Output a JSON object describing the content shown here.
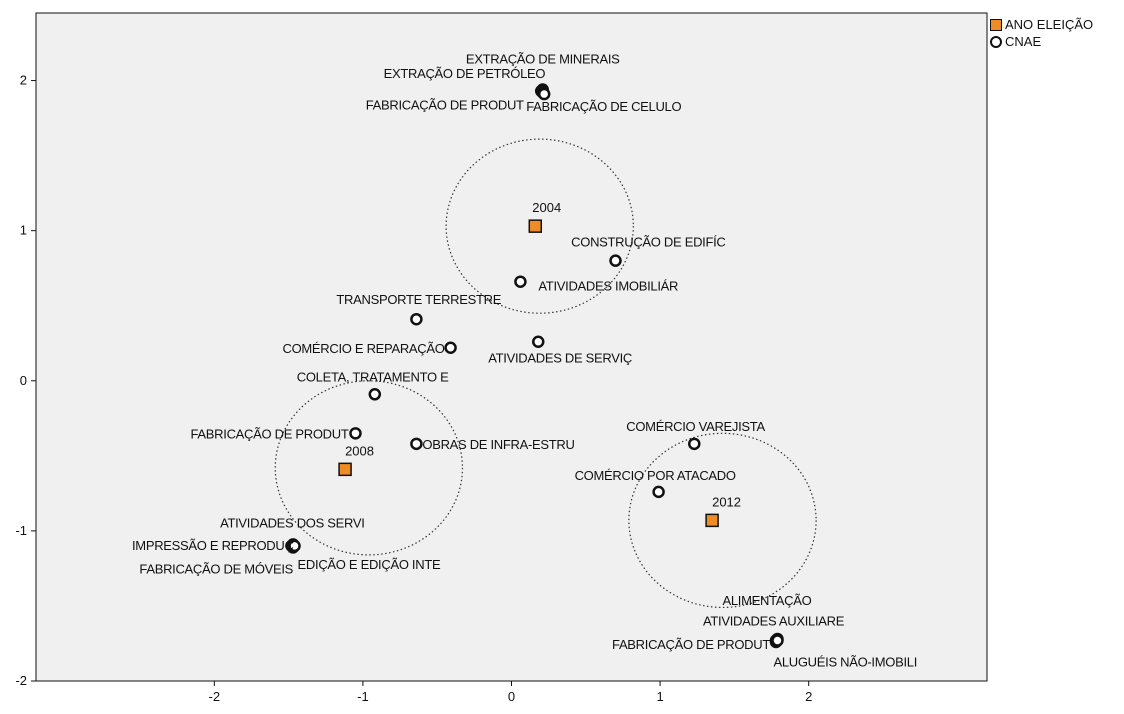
{
  "chart_data": {
    "type": "scatter",
    "title": "",
    "xlabel": "",
    "ylabel": "",
    "xlim": [
      -3.2,
      3.2
    ],
    "ylim": [
      -2,
      2.45
    ],
    "x_ticks": [
      "-2",
      "-1",
      "0",
      "1",
      "2"
    ],
    "y_ticks": [
      "2",
      "1",
      "0",
      "-1",
      "-2"
    ],
    "grid": false,
    "legend_position": "outside-top-right",
    "series": [
      {
        "name": "ANO ELEIÇÃO",
        "marker": "square",
        "color": "#f08c28",
        "points": [
          {
            "label": "2004",
            "x": 0.16,
            "y": 1.03
          },
          {
            "label": "2008",
            "x": -1.12,
            "y": -0.59
          },
          {
            "label": "2012",
            "x": 1.35,
            "y": -0.93
          }
        ]
      },
      {
        "name": "CNAE",
        "marker": "circle",
        "color": "#ffffff",
        "points": [
          {
            "label": "EXTRAÇÃO DE MINERAIS",
            "x": 0.21,
            "y": 1.94
          },
          {
            "label": "EXTRAÇÃO DE PETRÓLEO",
            "x": 0.2,
            "y": 1.93
          },
          {
            "label": "FABRICAÇÃO DE PRODUT",
            "x": 0.21,
            "y": 1.92
          },
          {
            "label": "FABRICAÇÃO DE CELULO",
            "x": 0.22,
            "y": 1.91
          },
          {
            "label": "CONSTRUÇÃO DE EDIFÍC",
            "x": 0.7,
            "y": 0.8
          },
          {
            "label": "ATIVIDADES IMOBILIÁR",
            "x": 0.06,
            "y": 0.66
          },
          {
            "label": "TRANSPORTE TERRESTRE",
            "x": -0.64,
            "y": 0.41
          },
          {
            "label": "COMÉRCIO E REPARAÇÃO",
            "x": -0.41,
            "y": 0.22
          },
          {
            "label": "ATIVIDADES DE SERVIÇ",
            "x": 0.18,
            "y": 0.26
          },
          {
            "label": "COLETA, TRATAMENTO E",
            "x": -0.92,
            "y": -0.09
          },
          {
            "label": "FABRICAÇÃO DE PRODUT",
            "x": -1.05,
            "y": -0.35
          },
          {
            "label": "OBRAS DE INFRA-ESTRU",
            "x": -0.64,
            "y": -0.42
          },
          {
            "label": "COMÉRCIO VAREJISTA",
            "x": 1.23,
            "y": -0.42
          },
          {
            "label": "COMÉRCIO POR ATACADO",
            "x": 0.99,
            "y": -0.74
          },
          {
            "label": "ATIVIDADES DOS SERVI",
            "x": -1.47,
            "y": -1.09
          },
          {
            "label": "IMPRESSÃO E REPRODUÇ",
            "x": -1.48,
            "y": -1.1
          },
          {
            "label": "FABRICAÇÃO DE MÓVEIS",
            "x": -1.47,
            "y": -1.11
          },
          {
            "label": "EDIÇÃO E EDIÇÃO INTE",
            "x": -1.46,
            "y": -1.1
          },
          {
            "label": "ALIMENTAÇÃO",
            "x": 1.79,
            "y": -1.72
          },
          {
            "label": "ATIVIDADES AUXILIARE",
            "x": 1.78,
            "y": -1.73
          },
          {
            "label": "FABRICAÇÃO DE PRODUT",
            "x": 1.78,
            "y": -1.74
          },
          {
            "label": "ALUGUÉIS NÃO-IMOBILI",
            "x": 1.79,
            "y": -1.73
          }
        ]
      }
    ],
    "annotations": [
      {
        "type": "circle",
        "center_x": 0.19,
        "center_y": 1.03,
        "radius_x": 0.63,
        "radius_y": 0.58
      },
      {
        "type": "circle",
        "center_x": -0.96,
        "center_y": -0.58,
        "radius_x": 0.63,
        "radius_y": 0.58
      },
      {
        "type": "circle",
        "center_x": 1.42,
        "center_y": -0.93,
        "radius_x": 0.63,
        "radius_y": 0.58
      }
    ]
  },
  "legend": {
    "items": [
      {
        "label": "ANO ELEIÇÃO",
        "swatch_color": "#f08c28"
      },
      {
        "label": "CNAE",
        "swatch_color": "#ffffff"
      }
    ]
  },
  "colors": {
    "plot_background": "#f0f0f0",
    "axis": "#111111",
    "ellipse_stroke": "#333333"
  }
}
